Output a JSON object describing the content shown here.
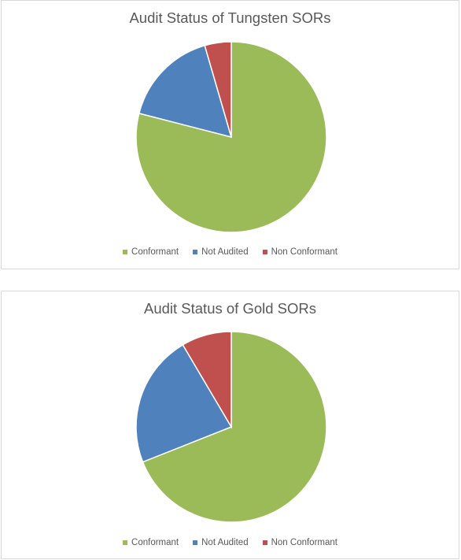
{
  "chart_data": [
    {
      "type": "pie",
      "title": "Audit Status of Tungsten SORs",
      "categories": [
        "Conformant",
        "Not Audited",
        "Non Conformant"
      ],
      "values": [
        79,
        16.5,
        4.5
      ],
      "colors": [
        "#9bbb59",
        "#4f81bd",
        "#c0504d"
      ],
      "legend_position": "bottom"
    },
    {
      "type": "pie",
      "title": "Audit Status of Gold SORs",
      "categories": [
        "Conformant",
        "Not Audited",
        "Non Conformant"
      ],
      "values": [
        69,
        22.5,
        8.5
      ],
      "colors": [
        "#9bbb59",
        "#4f81bd",
        "#c0504d"
      ],
      "legend_position": "bottom"
    }
  ]
}
